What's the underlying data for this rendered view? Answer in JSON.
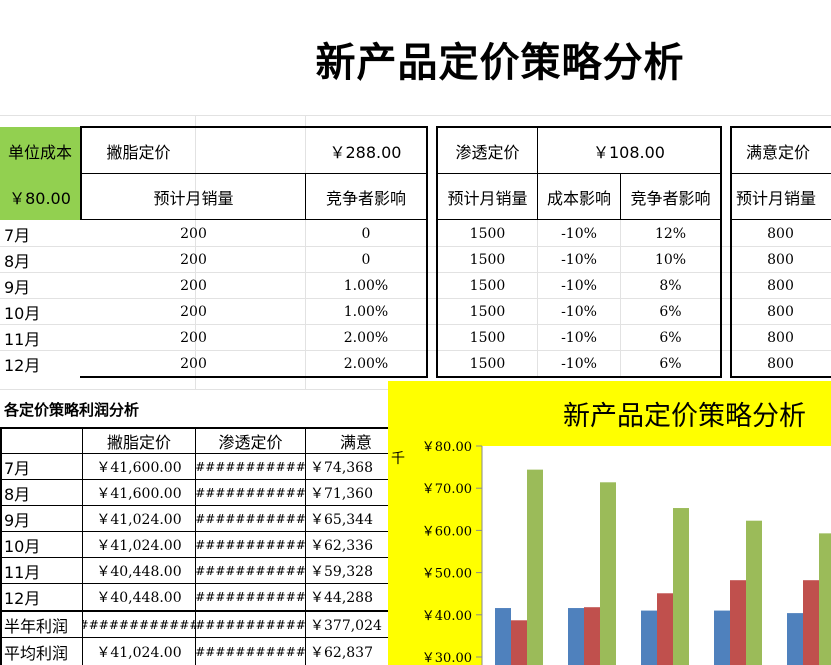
{
  "sheet_title": "新产品定价策略分析",
  "unit_cost": {
    "label": "单位成本",
    "value": "￥80.00"
  },
  "skim": {
    "label": "撇脂定价",
    "price": "￥288.00",
    "col_sales": "预计月销量",
    "col_competitor": "竞争者影响",
    "rows": [
      {
        "sales": "200",
        "competitor": "0"
      },
      {
        "sales": "200",
        "competitor": "0"
      },
      {
        "sales": "200",
        "competitor": "1.00%"
      },
      {
        "sales": "200",
        "competitor": "1.00%"
      },
      {
        "sales": "200",
        "competitor": "2.00%"
      },
      {
        "sales": "200",
        "competitor": "2.00%"
      }
    ]
  },
  "penetration": {
    "label": "渗透定价",
    "price": "￥108.00",
    "col_sales": "预计月销量",
    "col_cost": "成本影响",
    "col_competitor": "竞争者影响",
    "rows": [
      {
        "sales": "1500",
        "cost": "-10%",
        "competitor": "12%"
      },
      {
        "sales": "1500",
        "cost": "-10%",
        "competitor": "10%"
      },
      {
        "sales": "1500",
        "cost": "-10%",
        "competitor": "8%"
      },
      {
        "sales": "1500",
        "cost": "-10%",
        "competitor": "6%"
      },
      {
        "sales": "1500",
        "cost": "-10%",
        "competitor": "6%"
      },
      {
        "sales": "1500",
        "cost": "-10%",
        "competitor": "6%"
      }
    ]
  },
  "satisfaction": {
    "label": "满意定价",
    "col_sales": "预计月销量",
    "rows": [
      "800",
      "800",
      "800",
      "800",
      "800",
      "800"
    ]
  },
  "months": [
    "7月",
    "8月",
    "9月",
    "10月",
    "11月",
    "12月"
  ],
  "profit": {
    "section_title": "各定价策略利润分析",
    "headers": [
      "撇脂定价",
      "渗透定价",
      "满意"
    ],
    "rows": [
      {
        "label": "7月",
        "skim": "￥41,600.00",
        "pen": "###########",
        "sat": "￥74,368"
      },
      {
        "label": "8月",
        "skim": "￥41,600.00",
        "pen": "###########",
        "sat": "￥71,360"
      },
      {
        "label": "9月",
        "skim": "￥41,024.00",
        "pen": "###########",
        "sat": "￥65,344"
      },
      {
        "label": "10月",
        "skim": "￥41,024.00",
        "pen": "###########",
        "sat": "￥62,336"
      },
      {
        "label": "11月",
        "skim": "￥40,448.00",
        "pen": "###########",
        "sat": "￥59,328"
      },
      {
        "label": "12月",
        "skim": "￥40,448.00",
        "pen": "###########",
        "sat": "￥44,288"
      },
      {
        "label": "半年利润",
        "skim": "############",
        "pen": "###########",
        "sat": "￥377,024"
      },
      {
        "label": "平均利润",
        "skim": "￥41,024.00",
        "pen": "###########",
        "sat": "￥62,837"
      }
    ]
  },
  "chart_data": {
    "type": "bar",
    "title": "新产品定价策略分析",
    "ylabel": "千",
    "ylim": [
      30,
      80
    ],
    "ytick_labels": [
      "￥80.00",
      "￥70.00",
      "￥60.00",
      "￥50.00",
      "￥40.00",
      "￥30.00"
    ],
    "ytick_values": [
      80,
      70,
      60,
      50,
      40,
      30
    ],
    "series": [
      {
        "color": "#4f81bd",
        "values": [
          41.6,
          41.6,
          41.0,
          41.0,
          40.4
        ]
      },
      {
        "color": "#c0504d",
        "values": [
          38.7,
          41.8,
          45.1,
          48.2,
          48.2
        ]
      },
      {
        "color": "#9bbb59",
        "values": [
          74.4,
          71.4,
          65.3,
          62.3,
          59.3
        ]
      }
    ]
  }
}
